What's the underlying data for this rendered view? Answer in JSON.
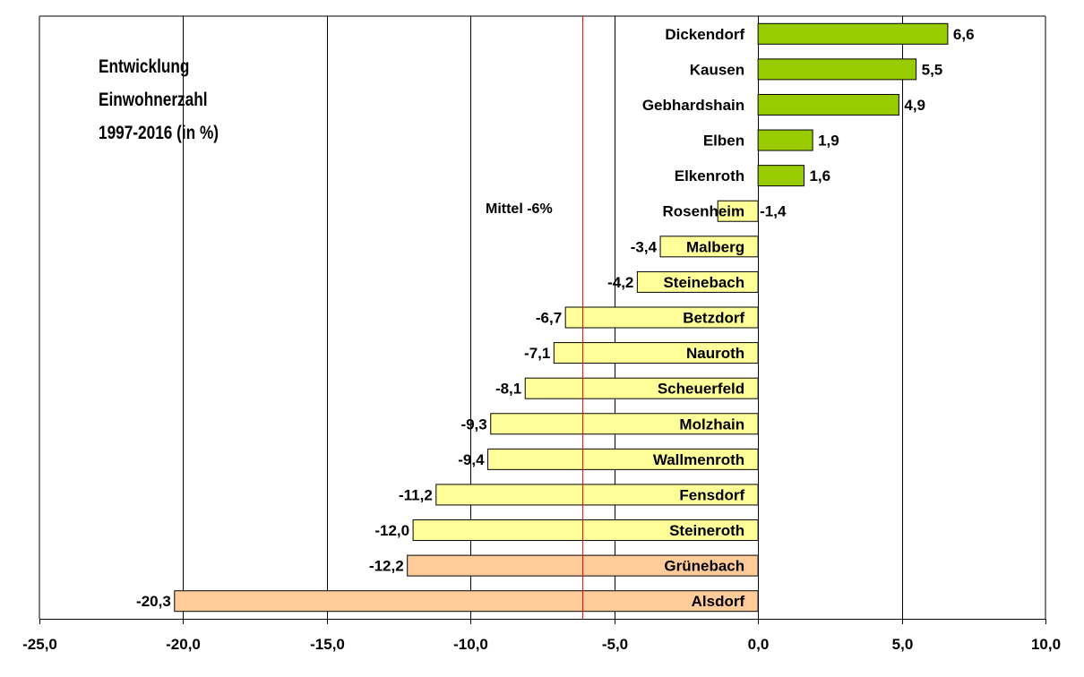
{
  "chart_data": {
    "type": "bar",
    "orientation": "horizontal",
    "title_lines": [
      "Entwicklung",
      "Einwohnerzahl",
      "1997-2016 (in %)"
    ],
    "categories": [
      "Dickendorf",
      "Kausen",
      "Gebhardshain",
      "Elben",
      "Elkenroth",
      "Rosenheim",
      "Malberg",
      "Steinebach",
      "Betzdorf",
      "Nauroth",
      "Scheuerfeld",
      "Molzhain",
      "Wallmenroth",
      "Fensdorf",
      "Steineroth",
      "Grünebach",
      "Alsdorf"
    ],
    "values": [
      6.6,
      5.5,
      4.9,
      1.9,
      1.6,
      -1.4,
      -3.4,
      -4.2,
      -6.7,
      -7.1,
      -8.1,
      -9.3,
      -9.4,
      -11.2,
      -12.0,
      -12.2,
      -20.3
    ],
    "value_labels": [
      "6,6",
      "5,5",
      "4,9",
      "1,9",
      "1,6",
      "-1,4",
      "-3,4",
      "-4,2",
      "-6,7",
      "-7,1",
      "-8,1",
      "-9,3",
      "-9,4",
      "-11,2",
      "-12,0",
      "-12,2",
      "-20,3"
    ],
    "bar_colors": [
      "#99cc00",
      "#99cc00",
      "#99cc00",
      "#99cc00",
      "#99cc00",
      "#ffff99",
      "#ffff99",
      "#ffff99",
      "#ffff99",
      "#ffff99",
      "#ffff99",
      "#ffff99",
      "#ffff99",
      "#ffff99",
      "#ffff99",
      "#ffcc99",
      "#ffcc99"
    ],
    "xlim": [
      -25,
      10
    ],
    "xticks": [
      -25,
      -20,
      -15,
      -10,
      -5,
      0,
      5,
      10
    ],
    "xtick_labels": [
      "-25,0",
      "-20,0",
      "-15,0",
      "-10,0",
      "-5,0",
      "0,0",
      "5,0",
      "10,0"
    ],
    "grid": "vertical",
    "reference_line": {
      "value": -6.1,
      "label": "Mittel -6%",
      "color": "#ff0000"
    }
  }
}
